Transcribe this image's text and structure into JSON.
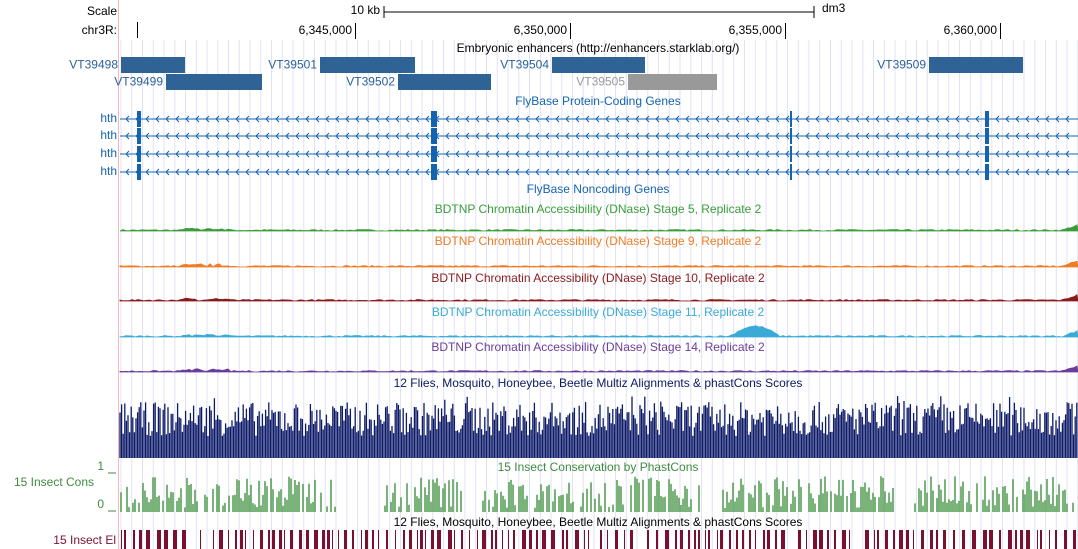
{
  "header": {
    "scale_label": "Scale",
    "chr_label": "chr3R:",
    "scale_bar_label": "10 kb",
    "assembly": "dm3",
    "position_ticks": [
      "6,345,000",
      "6,350,000",
      "6,355,000",
      "6,360,000"
    ]
  },
  "enhancers": {
    "title": "Embryonic enhancers (http://enhancers.starklab.org/)",
    "items": [
      "VT39498",
      "VT39499",
      "VT39501",
      "VT39502",
      "VT39504",
      "VT39505",
      "VT39509"
    ]
  },
  "genes": {
    "title": "FlyBase Protein-Coding Genes",
    "rows": [
      "hth",
      "hth",
      "hth",
      "hth"
    ]
  },
  "noncoding": {
    "title": "FlyBase Noncoding Genes"
  },
  "dnase": [
    "BDTNP Chromatin Accessibility (DNase) Stage 5, Replicate 2",
    "BDTNP Chromatin Accessibility (DNase) Stage 9, Replicate 2",
    "BDTNP Chromatin Accessibility (DNase) Stage 10, Replicate 2",
    "BDTNP Chromatin Accessibility (DNase) Stage 11, Replicate 2",
    "BDTNP Chromatin Accessibility (DNase) Stage 14, Replicate 2"
  ],
  "multiz": {
    "title": "12 Flies, Mosquito, Honeybee, Beetle Multiz Alignments & phastCons Scores"
  },
  "phastcons": {
    "title": "15 Insect Conservation by PhastCons",
    "label": "15 Insect Cons",
    "max": 1,
    "min": 0
  },
  "elements": {
    "title": "12 Flies, Mosquito, Honeybee, Beetle Multiz Alignments & phastCons Scores",
    "label": "15 Insect El"
  }
}
